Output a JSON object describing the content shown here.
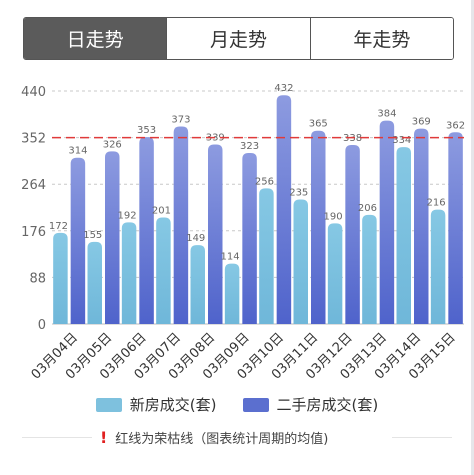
{
  "tabs": [
    {
      "label": "日走势",
      "active": true
    },
    {
      "label": "月走势",
      "active": false
    },
    {
      "label": "年走势",
      "active": false
    }
  ],
  "chart_data": {
    "type": "bar",
    "categories": [
      "03月04日",
      "03月05日",
      "03月06日",
      "03月07日",
      "03月08日",
      "03月09日",
      "03月10日",
      "03月11日",
      "03月12日",
      "03月13日",
      "03月14日",
      "03月15日"
    ],
    "series": [
      {
        "name": "新房成交(套)",
        "color": "#7ec1de",
        "values": [
          172,
          155,
          192,
          201,
          149,
          114,
          256,
          235,
          190,
          206,
          334,
          216
        ]
      },
      {
        "name": "二手房成交(套)",
        "color": "#5b6fcf",
        "values": [
          314,
          326,
          353,
          373,
          339,
          323,
          432,
          365,
          338,
          384,
          369,
          362
        ]
      }
    ],
    "yticks": [
      0,
      88,
      176,
      264,
      352,
      440
    ],
    "ylim": [
      0,
      440
    ],
    "reference_line": {
      "value": 352,
      "color": "#e03a3a"
    },
    "grid": true,
    "legend_position": "bottom"
  },
  "legend": {
    "new_label": "新房成交(套)",
    "second_label": "二手房成交(套)",
    "new_color": "#7ec1de",
    "second_color": "#5b6fcf"
  },
  "note": {
    "icon": "exclamation-icon",
    "text": "红线为荣枯线（图表统计周期的均值)"
  }
}
